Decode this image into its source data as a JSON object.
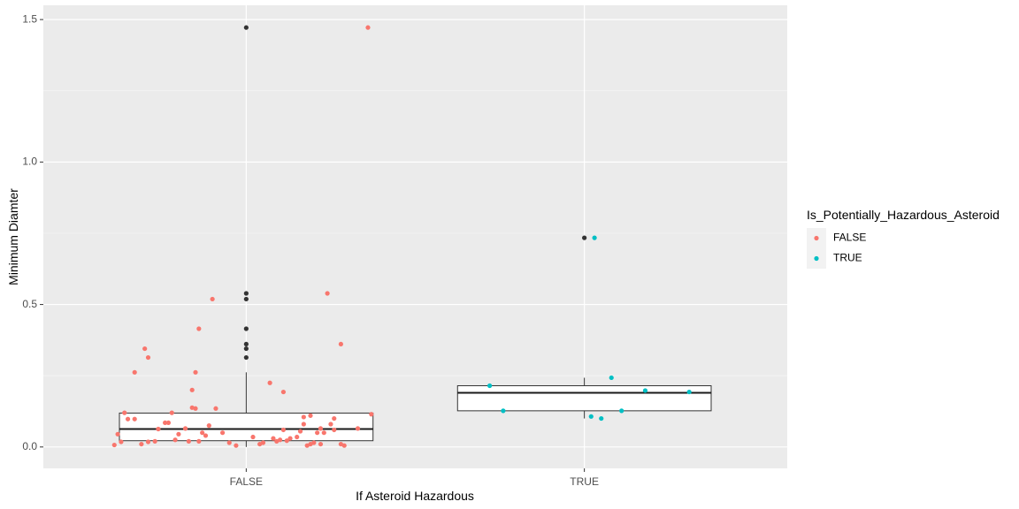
{
  "chart_data": {
    "type": "boxplot",
    "xlabel": "If Asteroid Hazardous",
    "ylabel": "Minimum Diamter",
    "categories": [
      "FALSE",
      "TRUE"
    ],
    "ylim": [
      -0.075,
      1.55
    ],
    "y_ticks": [
      0.0,
      0.5,
      1.0,
      1.5
    ],
    "y_tick_labels": [
      "0.0",
      "0.5",
      "1.0",
      "1.5"
    ],
    "grid": true,
    "legend": {
      "title": "Is_Potentially_Hazardous_Asteroid",
      "position": "right",
      "entries": [
        {
          "label": "FALSE",
          "color": "#F8766D"
        },
        {
          "label": "TRUE",
          "color": "#00BFC4"
        }
      ]
    },
    "boxes": [
      {
        "category": "FALSE",
        "lower_whisker": 0.0,
        "q1": 0.022,
        "median": 0.063,
        "q3": 0.119,
        "upper_whisker": 0.262,
        "outliers": [
          0.314,
          0.345,
          0.361,
          0.415,
          0.519,
          0.539,
          1.472
        ]
      },
      {
        "category": "TRUE",
        "lower_whisker": 0.1,
        "q1": 0.127,
        "median": 0.19,
        "q3": 0.215,
        "upper_whisker": 0.243,
        "outliers": [
          0.734
        ]
      }
    ],
    "series": [
      {
        "name": "FALSE",
        "color": "#F8766D",
        "category": "FALSE",
        "points": [
          {
            "x_offset": -0.39,
            "y": 0.007
          },
          {
            "x_offset": -0.38,
            "y": 0.045
          },
          {
            "x_offset": -0.37,
            "y": 0.018
          },
          {
            "x_offset": -0.36,
            "y": 0.12
          },
          {
            "x_offset": -0.35,
            "y": 0.098
          },
          {
            "x_offset": -0.33,
            "y": 0.098
          },
          {
            "x_offset": -0.33,
            "y": 0.262
          },
          {
            "x_offset": -0.31,
            "y": 0.01
          },
          {
            "x_offset": -0.3,
            "y": 0.345
          },
          {
            "x_offset": -0.29,
            "y": 0.314
          },
          {
            "x_offset": -0.29,
            "y": 0.018
          },
          {
            "x_offset": -0.27,
            "y": 0.02
          },
          {
            "x_offset": -0.26,
            "y": 0.063
          },
          {
            "x_offset": -0.24,
            "y": 0.085
          },
          {
            "x_offset": -0.23,
            "y": 0.085
          },
          {
            "x_offset": -0.22,
            "y": 0.12
          },
          {
            "x_offset": -0.21,
            "y": 0.025
          },
          {
            "x_offset": -0.2,
            "y": 0.045
          },
          {
            "x_offset": -0.18,
            "y": 0.065
          },
          {
            "x_offset": -0.17,
            "y": 0.02
          },
          {
            "x_offset": -0.16,
            "y": 0.2
          },
          {
            "x_offset": -0.16,
            "y": 0.138
          },
          {
            "x_offset": -0.15,
            "y": 0.262
          },
          {
            "x_offset": -0.15,
            "y": 0.135
          },
          {
            "x_offset": -0.14,
            "y": 0.415
          },
          {
            "x_offset": -0.14,
            "y": 0.02
          },
          {
            "x_offset": -0.13,
            "y": 0.05
          },
          {
            "x_offset": -0.12,
            "y": 0.04
          },
          {
            "x_offset": -0.11,
            "y": 0.075
          },
          {
            "x_offset": -0.1,
            "y": 0.519
          },
          {
            "x_offset": -0.09,
            "y": 0.135
          },
          {
            "x_offset": -0.07,
            "y": 0.05
          },
          {
            "x_offset": -0.05,
            "y": 0.015
          },
          {
            "x_offset": -0.03,
            "y": 0.005
          },
          {
            "x_offset": 0.02,
            "y": 0.035
          },
          {
            "x_offset": 0.04,
            "y": 0.01
          },
          {
            "x_offset": 0.05,
            "y": 0.015
          },
          {
            "x_offset": 0.07,
            "y": 0.225
          },
          {
            "x_offset": 0.08,
            "y": 0.03
          },
          {
            "x_offset": 0.09,
            "y": 0.02
          },
          {
            "x_offset": 0.1,
            "y": 0.025
          },
          {
            "x_offset": 0.11,
            "y": 0.06
          },
          {
            "x_offset": 0.11,
            "y": 0.193
          },
          {
            "x_offset": 0.12,
            "y": 0.022
          },
          {
            "x_offset": 0.13,
            "y": 0.03
          },
          {
            "x_offset": 0.15,
            "y": 0.035
          },
          {
            "x_offset": 0.16,
            "y": 0.055
          },
          {
            "x_offset": 0.17,
            "y": 0.08
          },
          {
            "x_offset": 0.17,
            "y": 0.105
          },
          {
            "x_offset": 0.18,
            "y": 0.005
          },
          {
            "x_offset": 0.19,
            "y": 0.01
          },
          {
            "x_offset": 0.19,
            "y": 0.11
          },
          {
            "x_offset": 0.2,
            "y": 0.015
          },
          {
            "x_offset": 0.21,
            "y": 0.05
          },
          {
            "x_offset": 0.22,
            "y": 0.065
          },
          {
            "x_offset": 0.22,
            "y": 0.01
          },
          {
            "x_offset": 0.23,
            "y": 0.05
          },
          {
            "x_offset": 0.24,
            "y": 0.539
          },
          {
            "x_offset": 0.25,
            "y": 0.08
          },
          {
            "x_offset": 0.26,
            "y": 0.06
          },
          {
            "x_offset": 0.26,
            "y": 0.1
          },
          {
            "x_offset": 0.28,
            "y": 0.361
          },
          {
            "x_offset": 0.28,
            "y": 0.01
          },
          {
            "x_offset": 0.29,
            "y": 0.005
          },
          {
            "x_offset": 0.33,
            "y": 0.065
          },
          {
            "x_offset": 0.36,
            "y": 1.472
          },
          {
            "x_offset": 0.37,
            "y": 0.115
          }
        ]
      },
      {
        "name": "TRUE",
        "color": "#00BFC4",
        "category": "TRUE",
        "points": [
          {
            "x_offset": -0.28,
            "y": 0.215
          },
          {
            "x_offset": -0.24,
            "y": 0.127
          },
          {
            "x_offset": 0.02,
            "y": 0.107
          },
          {
            "x_offset": 0.03,
            "y": 0.734
          },
          {
            "x_offset": 0.05,
            "y": 0.1
          },
          {
            "x_offset": 0.08,
            "y": 0.243
          },
          {
            "x_offset": 0.11,
            "y": 0.127
          },
          {
            "x_offset": 0.18,
            "y": 0.198
          },
          {
            "x_offset": 0.31,
            "y": 0.193
          }
        ]
      }
    ]
  }
}
